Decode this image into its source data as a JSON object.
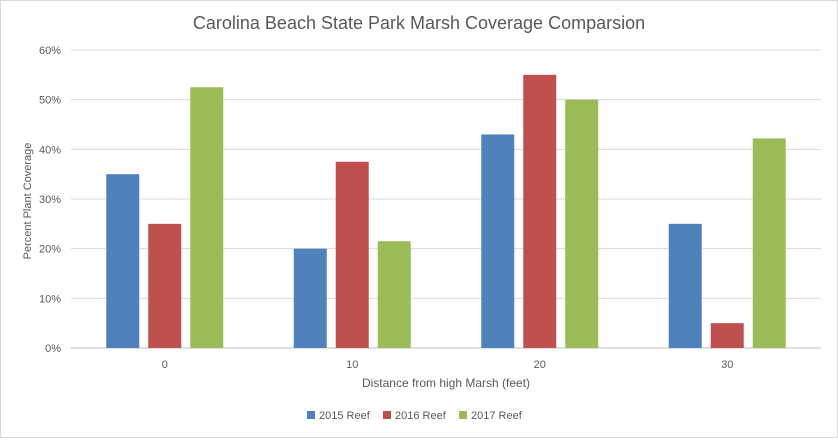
{
  "chart_data": {
    "type": "bar",
    "title": "Carolina Beach State Park Marsh Coverage Comparsion",
    "xlabel": "Distance from  high Marsh (feet)",
    "ylabel": "Percent Plant Coverage",
    "categories": [
      "0",
      "10",
      "20",
      "30"
    ],
    "y_ticks": [
      "0%",
      "10%",
      "20%",
      "30%",
      "40%",
      "50%",
      "60%"
    ],
    "ylim": [
      0,
      0.6
    ],
    "grid": true,
    "legend_position": "bottom",
    "series": [
      {
        "name": "2015 Reef",
        "color": "#4f81bd",
        "values": [
          0.35,
          0.2,
          0.43,
          0.25
        ]
      },
      {
        "name": "2016 Reef",
        "color": "#c0504d",
        "values": [
          0.25,
          0.375,
          0.55,
          0.05
        ]
      },
      {
        "name": "2017 Reef",
        "color": "#9bbb59",
        "values": [
          0.525,
          0.215,
          0.5,
          0.422
        ]
      }
    ]
  }
}
